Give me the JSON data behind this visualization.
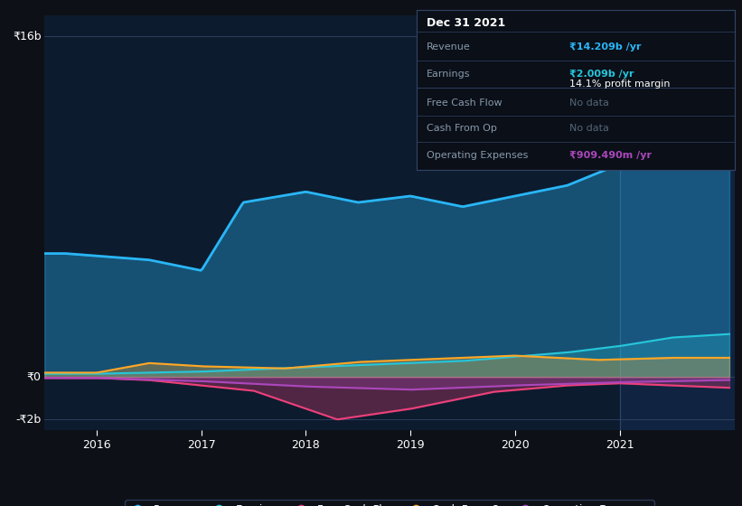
{
  "bg_color": "#0d1117",
  "chart_bg": "#0d1b2e",
  "y_label_top": "₹16b",
  "y_label_zero": "₹0",
  "y_label_neg": "-₹2b",
  "x_ticks": [
    "2016",
    "2017",
    "2018",
    "2019",
    "2020",
    "2021"
  ],
  "revenue_color": "#29b6f6",
  "earnings_color": "#26c6da",
  "free_cash_flow_color": "#ec407a",
  "cash_from_op_color": "#ffa726",
  "op_expenses_color": "#ab47bc",
  "tooltip_bg": "#0a0f18",
  "tooltip_border": "#334466",
  "tooltip_label_color": "#8899aa",
  "tooltip_nodata_color": "#556677",
  "legend": [
    {
      "label": "Revenue",
      "color": "#29b6f6"
    },
    {
      "label": "Earnings",
      "color": "#26c6da"
    },
    {
      "label": "Free Cash Flow",
      "color": "#ec407a"
    },
    {
      "label": "Cash From Op",
      "color": "#ffa726"
    },
    {
      "label": "Operating Expenses",
      "color": "#ab47bc"
    }
  ]
}
